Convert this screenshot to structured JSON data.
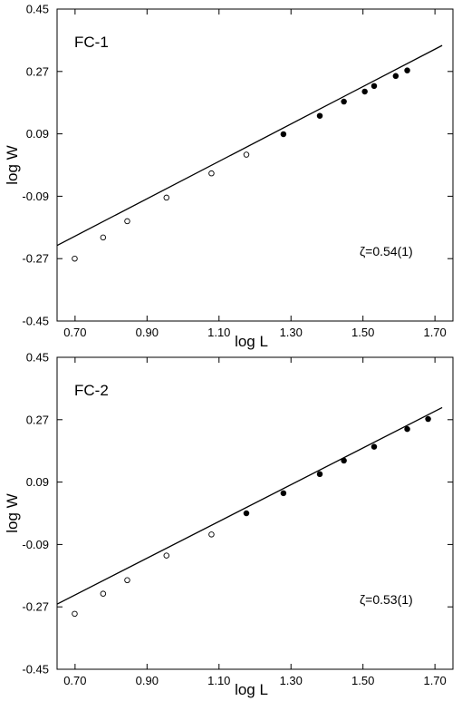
{
  "chart_data": [
    {
      "type": "scatter",
      "title": "FC-1",
      "xlabel": "log L",
      "ylabel": "log W",
      "xlim": [
        0.65,
        1.75
      ],
      "ylim": [
        -0.45,
        0.45
      ],
      "xticks": [
        0.7,
        0.9,
        1.1,
        1.3,
        1.5,
        1.7
      ],
      "xtick_labels": [
        "0.70",
        "0.90",
        "1.10",
        "1.30",
        "1.50",
        "1.70"
      ],
      "yticks": [
        0.45,
        0.27,
        0.09,
        -0.09,
        -0.27,
        -0.45
      ],
      "ytick_labels": [
        "0.45",
        "0.27",
        "0.09",
        "-0.09",
        "-0.27",
        "-0.45"
      ],
      "grid": false,
      "annotation": "ζ=0.54(1)",
      "series": [
        {
          "marker": "open-circle",
          "x": [
            0.699,
            0.778,
            0.845,
            0.954,
            1.079,
            1.176
          ],
          "y": [
            -0.27,
            -0.209,
            -0.162,
            -0.094,
            -0.024,
            0.03
          ]
        },
        {
          "marker": "filled-circle",
          "x": [
            1.279,
            1.38,
            1.447,
            1.505,
            1.531,
            1.591,
            1.623
          ],
          "y": [
            0.089,
            0.142,
            0.183,
            0.212,
            0.228,
            0.257,
            0.273
          ]
        }
      ],
      "fit_line": {
        "slope": 0.54,
        "x": [
          0.65,
          1.72
        ],
        "y": [
          -0.232,
          0.345
        ]
      }
    },
    {
      "type": "scatter",
      "title": "FC-2",
      "xlabel": "log L",
      "ylabel": "log W",
      "xlim": [
        0.65,
        1.75
      ],
      "ylim": [
        -0.45,
        0.45
      ],
      "xticks": [
        0.7,
        0.9,
        1.1,
        1.3,
        1.5,
        1.7
      ],
      "xtick_labels": [
        "0.70",
        "0.90",
        "1.10",
        "1.30",
        "1.50",
        "1.70"
      ],
      "yticks": [
        0.45,
        0.27,
        0.09,
        -0.09,
        -0.27,
        -0.45
      ],
      "ytick_labels": [
        "0.45",
        "0.27",
        "0.09",
        "-0.09",
        "-0.27",
        "-0.45"
      ],
      "grid": false,
      "annotation": "ζ=0.53(1)",
      "series": [
        {
          "marker": "open-circle",
          "x": [
            0.699,
            0.778,
            0.845,
            0.954,
            1.079
          ],
          "y": [
            -0.29,
            -0.232,
            -0.193,
            -0.122,
            -0.061
          ]
        },
        {
          "marker": "filled-circle",
          "x": [
            1.176,
            1.279,
            1.38,
            1.447,
            1.531,
            1.623,
            1.681
          ],
          "y": [
            0.0,
            0.058,
            0.113,
            0.152,
            0.192,
            0.243,
            0.272
          ]
        }
      ],
      "fit_line": {
        "slope": 0.53,
        "x": [
          0.65,
          1.72
        ],
        "y": [
          -0.262,
          0.305
        ]
      }
    }
  ]
}
